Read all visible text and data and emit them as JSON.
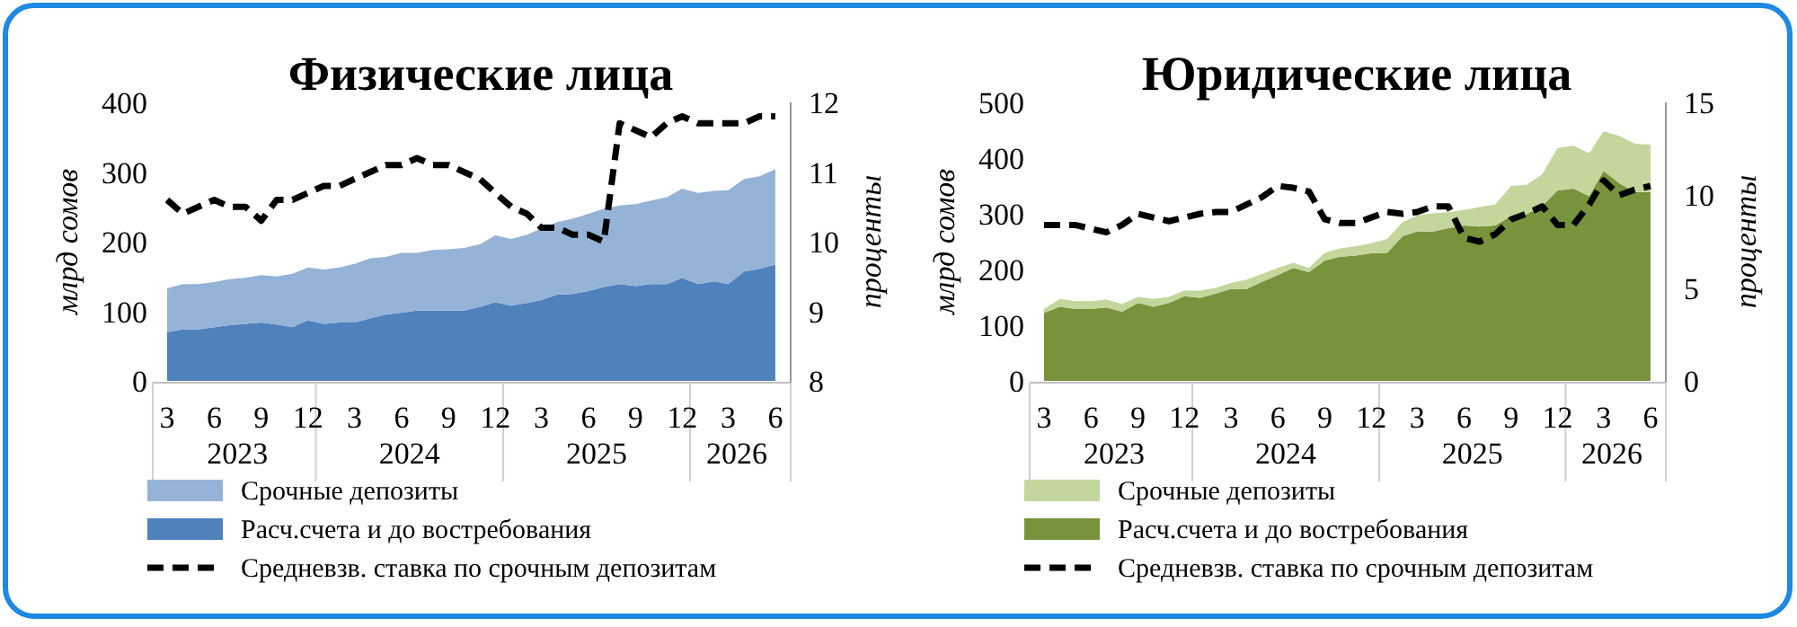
{
  "chart_data": [
    {
      "type": "area",
      "title": "Физические лица",
      "ylabel": "млрд сомов",
      "y2label": "проценты",
      "stacked": true,
      "legend": "bottom",
      "grid": false,
      "x": [
        "2023-03",
        "2023-04",
        "2023-05",
        "2023-06",
        "2023-07",
        "2023-08",
        "2023-09",
        "2023-10",
        "2023-11",
        "2023-12",
        "2024-01",
        "2024-02",
        "2024-03",
        "2024-04",
        "2024-05",
        "2024-06",
        "2024-07",
        "2024-08",
        "2024-09",
        "2024-10",
        "2024-11",
        "2024-12",
        "2025-01",
        "2025-02",
        "2025-03",
        "2025-04",
        "2025-05",
        "2025-06",
        "2025-07",
        "2025-08",
        "2025-09",
        "2025-10",
        "2025-11",
        "2025-12",
        "2026-01",
        "2026-02",
        "2026-03",
        "2026-04",
        "2026-05",
        "2026-06"
      ],
      "xlim": [
        "2023-02",
        "2026-07"
      ],
      "xticks": [
        {
          "value": "2023-03",
          "label": "3"
        },
        {
          "value": "2023-06",
          "label": "6"
        },
        {
          "value": "2023-09",
          "label": "9"
        },
        {
          "value": "2023-12",
          "label": "12"
        },
        {
          "value": "2024-03",
          "label": "3"
        },
        {
          "value": "2024-06",
          "label": "6"
        },
        {
          "value": "2024-09",
          "label": "9"
        },
        {
          "value": "2024-12",
          "label": "12"
        },
        {
          "value": "2025-03",
          "label": "3"
        },
        {
          "value": "2025-06",
          "label": "6"
        },
        {
          "value": "2025-09",
          "label": "9"
        },
        {
          "value": "2025-12",
          "label": "12"
        },
        {
          "value": "2026-03",
          "label": "3"
        },
        {
          "value": "2026-06",
          "label": "6"
        }
      ],
      "annotations": [
        "2023",
        "2024",
        "2025",
        "2026"
      ],
      "ylim": [
        0,
        400
      ],
      "yticks": [
        0,
        100,
        200,
        300,
        400
      ],
      "y2lim": [
        8,
        12
      ],
      "y2ticks": [
        8,
        9,
        10,
        11,
        12
      ],
      "series": [
        {
          "name": "Расч.счета  и до востребования",
          "color": "#4f81bd",
          "values": [
            70,
            74,
            74,
            77,
            80,
            82,
            84,
            81,
            77,
            87,
            82,
            84,
            84,
            90,
            95,
            98,
            101,
            101,
            101,
            101,
            106,
            113,
            108,
            112,
            116,
            124,
            125,
            129,
            135,
            139,
            136,
            139,
            139,
            148,
            139,
            143,
            139,
            157,
            161,
            167
          ]
        },
        {
          "name": "Срочные депозиты",
          "color": "#95b3d7",
          "values": [
            63,
            65,
            65,
            65,
            66,
            66,
            68,
            69,
            77,
            76,
            78,
            79,
            84,
            86,
            83,
            86,
            83,
            87,
            88,
            90,
            90,
            96,
            96,
            98,
            103,
            104,
            108,
            111,
            112,
            113,
            118,
            120,
            125,
            128,
            131,
            130,
            135,
            133,
            133,
            137
          ]
        },
        {
          "name": "Средневзв. ставка по срочным депозитам",
          "type": "line",
          "axis": "y2",
          "line_style": "dashed",
          "color": "#000000",
          "values": [
            10.6,
            10.4,
            10.5,
            10.6,
            10.5,
            10.5,
            10.3,
            10.6,
            10.6,
            10.7,
            10.8,
            10.8,
            10.9,
            11.0,
            11.1,
            11.1,
            11.2,
            11.1,
            11.1,
            11.0,
            10.9,
            10.7,
            10.5,
            10.4,
            10.2,
            10.2,
            10.1,
            10.1,
            10.0,
            11.7,
            11.6,
            11.5,
            11.7,
            11.8,
            11.7,
            11.7,
            11.7,
            11.7,
            11.8,
            11.8
          ]
        }
      ]
    },
    {
      "type": "area",
      "title": "Юридические лица",
      "ylabel": "млрд сомов",
      "y2label": "проценты",
      "stacked": true,
      "legend": "bottom",
      "grid": false,
      "x": [
        "2023-03",
        "2023-04",
        "2023-05",
        "2023-06",
        "2023-07",
        "2023-08",
        "2023-09",
        "2023-10",
        "2023-11",
        "2023-12",
        "2024-01",
        "2024-02",
        "2024-03",
        "2024-04",
        "2024-05",
        "2024-06",
        "2024-07",
        "2024-08",
        "2024-09",
        "2024-10",
        "2024-11",
        "2024-12",
        "2025-01",
        "2025-02",
        "2025-03",
        "2025-04",
        "2025-05",
        "2025-06",
        "2025-07",
        "2025-08",
        "2025-09",
        "2025-10",
        "2025-11",
        "2025-12",
        "2026-01",
        "2026-02",
        "2026-03",
        "2026-04",
        "2026-05",
        "2026-06"
      ],
      "xlim": [
        "2023-02",
        "2026-07"
      ],
      "xticks": [
        {
          "value": "2023-03",
          "label": "3"
        },
        {
          "value": "2023-06",
          "label": "6"
        },
        {
          "value": "2023-09",
          "label": "9"
        },
        {
          "value": "2023-12",
          "label": "12"
        },
        {
          "value": "2024-03",
          "label": "3"
        },
        {
          "value": "2024-06",
          "label": "6"
        },
        {
          "value": "2024-09",
          "label": "9"
        },
        {
          "value": "2024-12",
          "label": "12"
        },
        {
          "value": "2025-03",
          "label": "3"
        },
        {
          "value": "2025-06",
          "label": "6"
        },
        {
          "value": "2025-09",
          "label": "9"
        },
        {
          "value": "2025-12",
          "label": "12"
        },
        {
          "value": "2026-03",
          "label": "3"
        },
        {
          "value": "2026-06",
          "label": "6"
        }
      ],
      "annotations": [
        "2023",
        "2024",
        "2025",
        "2026"
      ],
      "ylim": [
        0,
        500
      ],
      "yticks": [
        0,
        100,
        200,
        300,
        400,
        500
      ],
      "y2lim": [
        0,
        15
      ],
      "y2ticks": [
        0,
        5,
        10,
        15
      ],
      "series": [
        {
          "name": "Расч.счета  и до востребования",
          "color": "#77933c",
          "values": [
            122,
            133,
            129,
            129,
            132,
            124,
            140,
            133,
            140,
            152,
            149,
            157,
            165,
            165,
            178,
            190,
            203,
            195,
            216,
            223,
            225,
            229,
            230,
            260,
            268,
            268,
            274,
            279,
            277,
            279,
            296,
            299,
            314,
            342,
            345,
            332,
            377,
            355,
            339,
            339
          ]
        },
        {
          "name": "Срочные депозиты",
          "color": "#c3d69b",
          "values": [
            7,
            14,
            14,
            14,
            14,
            14,
            11,
            14,
            11,
            10,
            13,
            10,
            11,
            17,
            14,
            13,
            9,
            8,
            14,
            15,
            17,
            18,
            25,
            25,
            29,
            33,
            29,
            28,
            35,
            38,
            54,
            53,
            57,
            76,
            77,
            77,
            71,
            85,
            87,
            85
          ]
        },
        {
          "name": "Средневзв. ставка по срочным депозитам",
          "type": "line",
          "axis": "y2",
          "line_style": "dashed",
          "color": "#000000",
          "values": [
            8.4,
            8.4,
            8.4,
            8.2,
            8.0,
            8.4,
            9.0,
            8.8,
            8.6,
            8.8,
            9.0,
            9.1,
            9.1,
            9.5,
            9.9,
            10.5,
            10.4,
            10.2,
            8.7,
            8.5,
            8.5,
            8.8,
            9.1,
            9.0,
            9.1,
            9.4,
            9.4,
            7.7,
            7.5,
            7.9,
            8.7,
            9.0,
            9.4,
            8.4,
            8.4,
            9.5,
            10.8,
            10.0,
            10.3,
            10.5
          ]
        }
      ]
    }
  ]
}
